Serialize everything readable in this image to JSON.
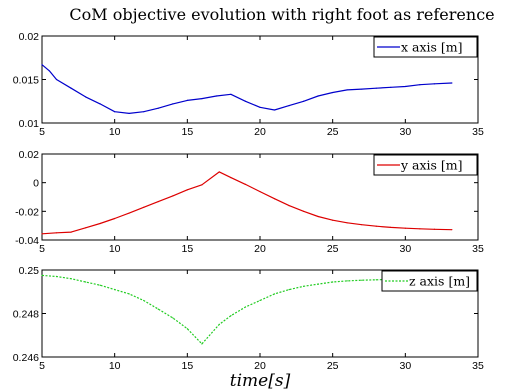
{
  "figure": {
    "title": "CoM objective evolution with right foot as reference",
    "xlabel": "time[s]"
  },
  "chart_data": [
    {
      "type": "line",
      "legend": "x axis [m]",
      "legend_position": "top-right",
      "color": "#0000cc",
      "line_style": "solid",
      "grid": false,
      "xlim": [
        5,
        35
      ],
      "ylim": [
        0.01,
        0.02
      ],
      "x_ticks": [
        5,
        10,
        15,
        20,
        25,
        30,
        35
      ],
      "x_tick_labels": [
        "5",
        "10",
        "15",
        "20",
        "25",
        "30",
        "35"
      ],
      "y_ticks": [
        0.01,
        0.015,
        0.02
      ],
      "y_tick_labels": [
        "0.01",
        "0.015",
        "0.02"
      ],
      "x": [
        5,
        5.5,
        6,
        7,
        8,
        9,
        10,
        11,
        12,
        13,
        14,
        15,
        16,
        17,
        18,
        19,
        20,
        21,
        22,
        23,
        24,
        25,
        26,
        27,
        28,
        29,
        30,
        31,
        32,
        33.2
      ],
      "y": [
        0.0167,
        0.016,
        0.015,
        0.014,
        0.013,
        0.0122,
        0.0113,
        0.0111,
        0.0113,
        0.0117,
        0.0122,
        0.0126,
        0.0128,
        0.0131,
        0.0133,
        0.0125,
        0.0118,
        0.0115,
        0.012,
        0.0125,
        0.0131,
        0.0135,
        0.0138,
        0.0139,
        0.014,
        0.0141,
        0.0142,
        0.0144,
        0.0145,
        0.0146
      ]
    },
    {
      "type": "line",
      "legend": "y axis [m]",
      "legend_position": "top-right",
      "color": "#dd0000",
      "line_style": "solid",
      "grid": false,
      "xlim": [
        5,
        35
      ],
      "ylim": [
        -0.04,
        0.02
      ],
      "x_ticks": [
        5,
        10,
        15,
        20,
        25,
        30,
        35
      ],
      "x_tick_labels": [
        "5",
        "10",
        "15",
        "20",
        "25",
        "30",
        "35"
      ],
      "y_ticks": [
        -0.04,
        -0.02,
        0,
        0.02
      ],
      "y_tick_labels": [
        "-0.04",
        "-0.02",
        "0",
        "0.02"
      ],
      "x": [
        5,
        6,
        7,
        8,
        9,
        10,
        11,
        12,
        13,
        14,
        15,
        16,
        17.2,
        18,
        19,
        20,
        21,
        22,
        23,
        24,
        25,
        26,
        27,
        28,
        29,
        30,
        31,
        32,
        33.2
      ],
      "y": [
        -0.0357,
        -0.035,
        -0.0345,
        -0.0315,
        -0.0285,
        -0.025,
        -0.0212,
        -0.0172,
        -0.0132,
        -0.0092,
        -0.005,
        -0.0015,
        0.0075,
        0.0035,
        -0.0012,
        -0.0062,
        -0.0112,
        -0.016,
        -0.02,
        -0.0236,
        -0.0262,
        -0.028,
        -0.0293,
        -0.0304,
        -0.0312,
        -0.0318,
        -0.0322,
        -0.0325,
        -0.0328
      ]
    },
    {
      "type": "line",
      "legend": "z axis [m]",
      "legend_position": "top-right",
      "color": "#22cc22",
      "line_style": "dashed",
      "grid": false,
      "xlim": [
        5,
        35
      ],
      "ylim": [
        0.246,
        0.25
      ],
      "x_ticks": [
        5,
        10,
        15,
        20,
        25,
        30,
        35
      ],
      "x_tick_labels": [
        "5",
        "10",
        "15",
        "20",
        "25",
        "30",
        "35"
      ],
      "y_ticks": [
        0.246,
        0.248,
        0.25
      ],
      "y_tick_labels": [
        "0.246",
        "0.248",
        "0.25"
      ],
      "x": [
        5,
        6,
        7,
        8,
        9,
        10,
        11,
        12,
        13,
        14,
        15,
        16,
        17.2,
        18,
        19,
        20,
        21,
        22,
        23,
        24,
        25,
        26,
        27,
        28,
        29,
        30,
        31,
        32,
        33.2
      ],
      "y": [
        0.24975,
        0.2497,
        0.2496,
        0.24945,
        0.2493,
        0.2491,
        0.2489,
        0.2486,
        0.2482,
        0.2478,
        0.2473,
        0.2466,
        0.2475,
        0.2479,
        0.2483,
        0.2486,
        0.2489,
        0.2491,
        0.24925,
        0.24935,
        0.24945,
        0.2495,
        0.24953,
        0.24955,
        0.24957,
        0.24958,
        0.24958,
        0.24959,
        0.2496
      ]
    }
  ]
}
